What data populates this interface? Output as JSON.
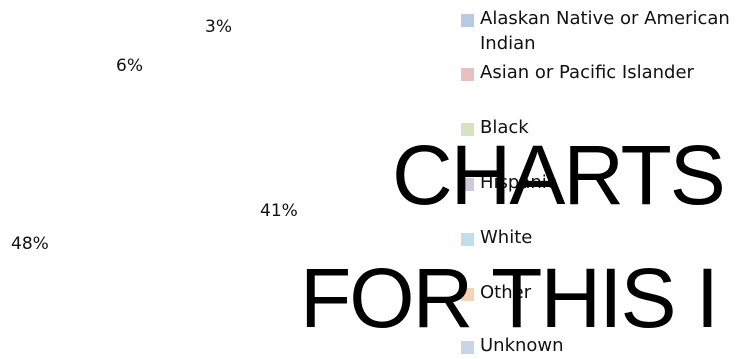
{
  "chart_data": {
    "type": "pie",
    "title": "",
    "categories": [
      "Alaskan Native or American Indian",
      "Asian or Pacific Islander",
      "Black",
      "Hispanic",
      "White",
      "Other",
      "Unknown"
    ],
    "data_labels": [
      "3%",
      "6%",
      "41%",
      "48%"
    ],
    "legend_position": "right",
    "colors": [
      "#b8c9e2",
      "#e8c0c0",
      "#d6e3c2",
      "#d2c8de",
      "#bfe0e8",
      "#f7d3b5",
      "#c8d4e8"
    ]
  },
  "watermark": {
    "line1": "CHARTS",
    "line2": "FOR THIS I"
  }
}
